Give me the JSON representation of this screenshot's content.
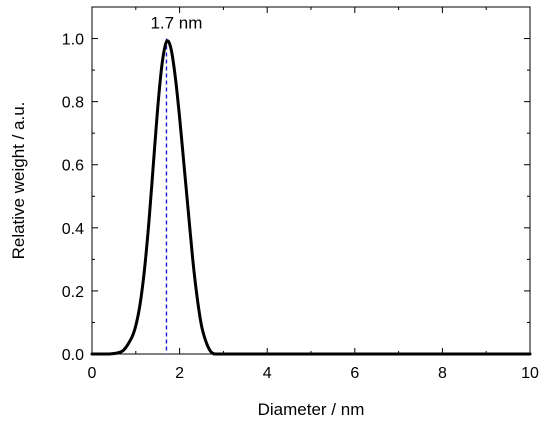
{
  "chart_data": {
    "type": "line",
    "xlabel": "Diameter / nm",
    "ylabel": "Relative weight / a.u.",
    "xlim": [
      0,
      10
    ],
    "ylim": [
      0,
      1.1
    ],
    "x_ticks": [
      0,
      2,
      4,
      6,
      8,
      10
    ],
    "y_ticks": [
      0.0,
      0.2,
      0.4,
      0.6,
      0.8,
      1.0
    ],
    "x_tick_labels": [
      "0",
      "2",
      "4",
      "6",
      "8",
      "10"
    ],
    "y_tick_labels": [
      "0.0",
      "0.2",
      "0.4",
      "0.6",
      "0.8",
      "1.0"
    ],
    "grid": false,
    "series": [
      {
        "color": "#000000",
        "x": [
          0.0,
          0.4,
          0.7,
          0.9,
          1.0,
          1.1,
          1.2,
          1.3,
          1.4,
          1.5,
          1.6,
          1.7,
          1.8,
          1.9,
          2.0,
          2.1,
          2.2,
          2.3,
          2.4,
          2.5,
          2.6,
          2.7,
          2.8,
          3.0,
          5.0,
          8.0,
          10.0
        ],
        "y": [
          0.0,
          0.0,
          0.01,
          0.05,
          0.09,
          0.16,
          0.27,
          0.42,
          0.6,
          0.78,
          0.92,
          0.99,
          0.97,
          0.88,
          0.75,
          0.6,
          0.45,
          0.3,
          0.18,
          0.09,
          0.04,
          0.01,
          0.0,
          0.0,
          0.0,
          0.0,
          0.0
        ]
      }
    ],
    "annotations": [
      {
        "text": "1.7 nm",
        "x": 1.7,
        "y": 1.0,
        "line": "dashed",
        "line_color": "#1a1acc"
      }
    ]
  }
}
